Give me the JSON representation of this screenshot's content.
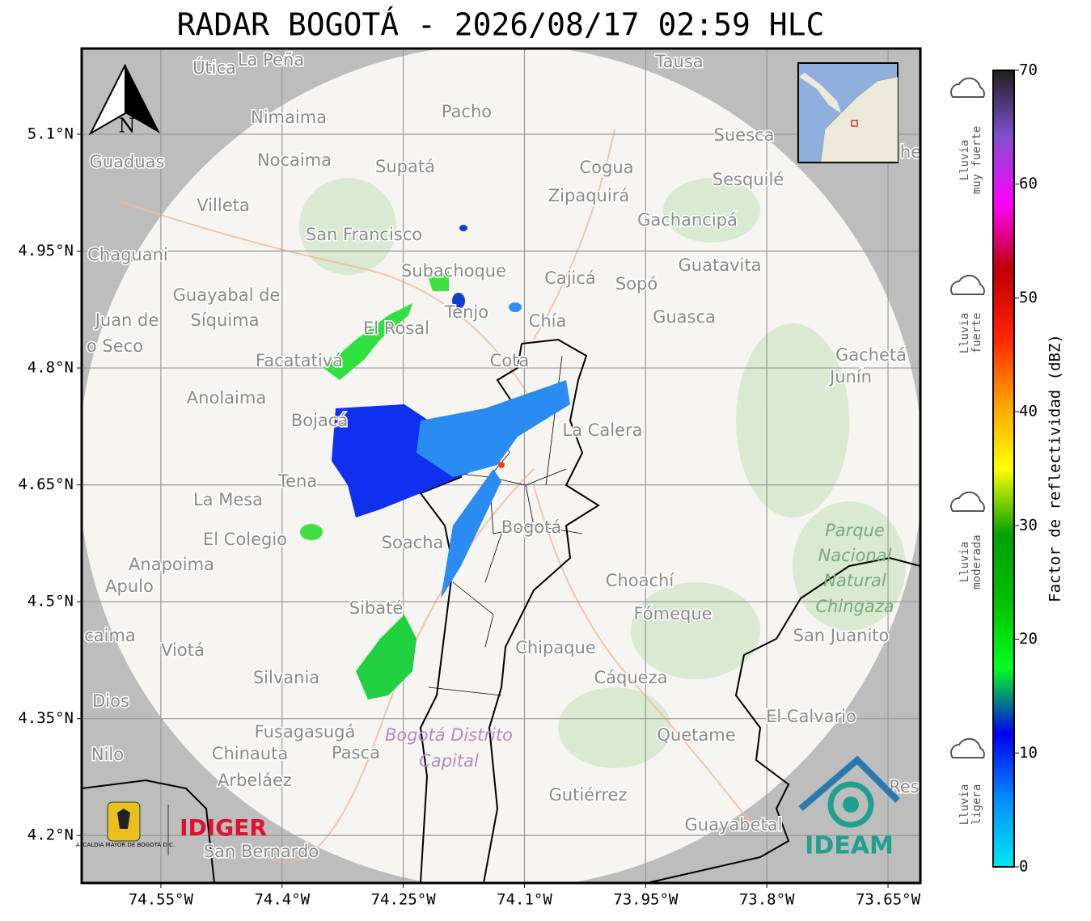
{
  "title": "RADAR BOGOTÁ - 2026/08/17 02:59 HLC",
  "map": {
    "xlim": [
      -74.648,
      -73.61
    ],
    "ylim": [
      4.139,
      5.21
    ],
    "xticks": [
      {
        "value": -74.55,
        "label": "74.55°W"
      },
      {
        "value": -74.4,
        "label": "74.4°W"
      },
      {
        "value": -74.25,
        "label": "74.25°W"
      },
      {
        "value": -74.1,
        "label": "74.1°W"
      },
      {
        "value": -73.95,
        "label": "73.95°W"
      },
      {
        "value": -73.8,
        "label": "73.8°W"
      },
      {
        "value": -73.65,
        "label": "73.65°W"
      }
    ],
    "yticks": [
      {
        "value": 4.2,
        "label": "4.2°N"
      },
      {
        "value": 4.35,
        "label": "4.35°N"
      },
      {
        "value": 4.5,
        "label": "4.5°N"
      },
      {
        "value": 4.65,
        "label": "4.65°N"
      },
      {
        "value": 4.8,
        "label": "4.8°N"
      },
      {
        "value": 4.95,
        "label": "4.95°N"
      },
      {
        "value": 5.1,
        "label": "5.1°N"
      }
    ],
    "north": "N",
    "places": [
      "Útica",
      "La Peña",
      "Tausa",
      "Pacho",
      "Nimaima",
      "Guaduas",
      "Nocaima",
      "Supatá",
      "Cogua",
      "Suesca",
      "Sesquilé",
      "Zipaquirá",
      "Villeta",
      "Gachancipá",
      "San Francisco",
      "Chaguani",
      "Guatavita",
      "Subachoque",
      "Cajicá",
      "Sopó",
      "Guayabal de",
      "Síquima",
      "Juan de",
      "o Seco",
      "Tenjo",
      "Chía",
      "Guasca",
      "El Rosal",
      "Facatativá",
      "Cota",
      "Gachetá",
      "Junín",
      "Anolaima",
      "Bojacá",
      "La Calera",
      "Tena",
      "La Mesa",
      "Bogotá",
      "El Colegio",
      "Soacha",
      "Anapoima",
      "Apulo",
      "Choachí",
      "Fómeque",
      "San Juanito",
      "Sibaté",
      "caima",
      "Viotá",
      "Chipaque",
      "Silvania",
      "Cáqueza",
      "Dios",
      "El Calvario",
      "Fusagasugá",
      "Quetame",
      "Nilo",
      "Chinauta",
      "Pasca",
      "Arbeláez",
      "Gutiérrez",
      "Guayabetal",
      "San Bernardo",
      "Res",
      "he"
    ],
    "parks": [
      "Parque",
      "Nacional",
      "Natural",
      "Chingaza",
      "Bogotá Distrito",
      "Capital"
    ],
    "logos": {
      "alcaldia": "ALCALDÍA MAYOR DE BOGOTÁ D.C.",
      "idiger": "IDIGER",
      "ideam": "IDEAM"
    }
  },
  "colorbar": {
    "label": "Factor de reflectividad (dBZ)",
    "lim": [
      0,
      70
    ],
    "ticks": [
      0,
      10,
      20,
      30,
      40,
      50,
      60,
      70
    ],
    "colors": [
      "#00e8f0",
      "#0090ff",
      "#0000f0",
      "#00ff20",
      "#00c000",
      "#00a000",
      "#ffff00",
      "#ffa000",
      "#ff2000",
      "#c00000",
      "#ff00ff",
      "#8050d0",
      "#202020"
    ],
    "categories": [
      [
        "Lluvia",
        "ligera"
      ],
      [
        "Lluvia",
        "moderada"
      ],
      [
        "Lluvia",
        "fuerte"
      ],
      [
        "Lluvia",
        "muy fuerte"
      ]
    ]
  }
}
